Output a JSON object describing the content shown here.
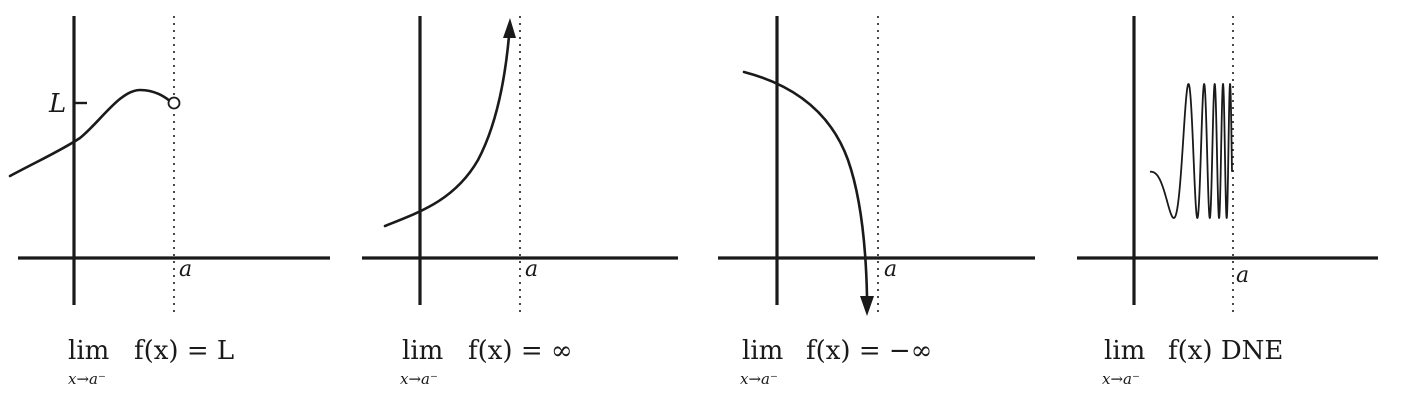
{
  "panels": [
    {
      "id": "left-limit-L",
      "behavior": "approaches finite value L with open circle at x=a",
      "point_label": "a",
      "y_label": "L",
      "caption": {
        "lim": "lim",
        "sub": "x→a⁻",
        "expr": "f(x) = L"
      }
    },
    {
      "id": "left-limit-infinity",
      "behavior": "increases without bound near x=a",
      "point_label": "a",
      "caption": {
        "lim": "lim",
        "sub": "x→a⁻",
        "expr": "f(x) = ∞"
      }
    },
    {
      "id": "left-limit-neg-infinity",
      "behavior": "decreases without bound near x=a",
      "point_label": "a",
      "caption": {
        "lim": "lim",
        "sub": "x→a⁻",
        "expr": "f(x) = −∞"
      }
    },
    {
      "id": "left-limit-dne",
      "behavior": "oscillates with increasing frequency near x=a",
      "point_label": "a",
      "caption": {
        "lim": "lim",
        "sub": "x→a⁻",
        "expr": "f(x) DNE"
      }
    }
  ]
}
